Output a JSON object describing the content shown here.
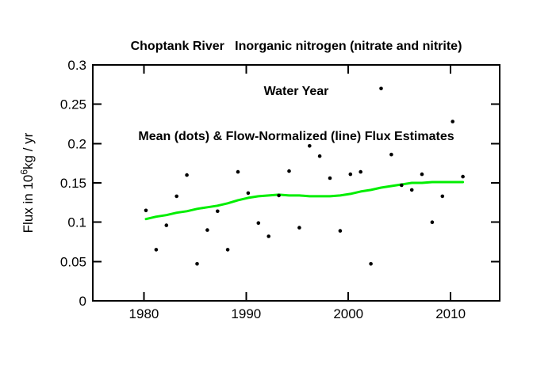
{
  "title": {
    "line1": "Choptank River   Inorganic nitrogen (nitrate and nitrite)",
    "line2": "Water Year",
    "line3": "Mean (dots) & Flow-Normalized (line) Flux Estimates"
  },
  "y_axis_label": {
    "prefix": "Flux in 10",
    "superscript": "6",
    "suffix": "kg / yr"
  },
  "colors": {
    "background": "#ffffff",
    "axis": "#000000",
    "dots": "#000000",
    "line": "#00ee00",
    "text": "#000000"
  },
  "chart_data": {
    "type": "scatter",
    "title": "Choptank River   Inorganic nitrogen (nitrate and nitrite) / Water Year / Mean (dots) & Flow-Normalized (line) Flux Estimates",
    "xlabel": "",
    "ylabel": "Flux in 10^6 kg / yr",
    "xlim": [
      1975,
      2014.8
    ],
    "ylim": [
      0,
      0.3
    ],
    "grid": false,
    "legend_position": "none",
    "x_offset": 0.2,
    "x_ticks": [
      {
        "value": 1980,
        "label": "1980"
      },
      {
        "value": 1990,
        "label": "1990"
      },
      {
        "value": 2000,
        "label": "2000"
      },
      {
        "value": 2010,
        "label": "2010"
      }
    ],
    "y_ticks": [
      {
        "value": 0,
        "label": "0"
      },
      {
        "value": 0.05,
        "label": "0.05"
      },
      {
        "value": 0.1,
        "label": "0.1"
      },
      {
        "value": 0.15,
        "label": "0.15"
      },
      {
        "value": 0.2,
        "label": "0.2"
      },
      {
        "value": 0.25,
        "label": "0.25"
      },
      {
        "value": 0.3,
        "label": "0.3"
      }
    ],
    "years": [
      1980,
      1981,
      1982,
      1983,
      1984,
      1985,
      1986,
      1987,
      1988,
      1989,
      1990,
      1991,
      1992,
      1993,
      1994,
      1995,
      1996,
      1997,
      1998,
      1999,
      2000,
      2001,
      2002,
      2003,
      2004,
      2005,
      2006,
      2007,
      2008,
      2009,
      2010,
      2011
    ],
    "series": [
      {
        "name": "Mean (dots)",
        "type": "scatter",
        "values": [
          0.115,
          0.065,
          0.096,
          0.133,
          0.16,
          0.047,
          0.09,
          0.114,
          0.065,
          0.164,
          0.137,
          0.099,
          0.082,
          0.134,
          0.165,
          0.093,
          0.197,
          0.184,
          0.156,
          0.089,
          0.161,
          0.164,
          0.047,
          0.27,
          0.186,
          0.147,
          0.141,
          0.161,
          0.1,
          0.133,
          0.228,
          0.158
        ]
      },
      {
        "name": "Flow-Normalized (line)",
        "type": "line",
        "values": [
          0.104,
          0.107,
          0.109,
          0.112,
          0.114,
          0.117,
          0.119,
          0.121,
          0.124,
          0.128,
          0.131,
          0.133,
          0.134,
          0.135,
          0.134,
          0.134,
          0.133,
          0.133,
          0.133,
          0.134,
          0.136,
          0.139,
          0.141,
          0.144,
          0.146,
          0.148,
          0.15,
          0.15,
          0.151,
          0.151,
          0.151,
          0.151
        ]
      }
    ]
  }
}
